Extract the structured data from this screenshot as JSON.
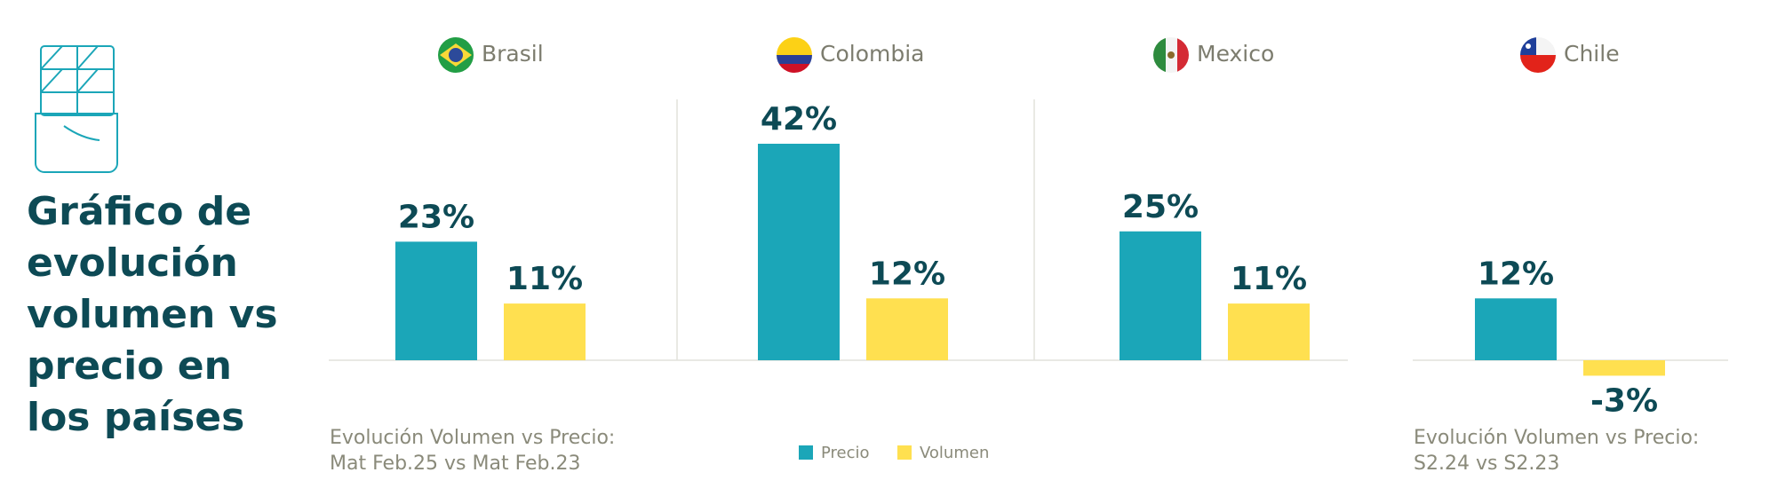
{
  "chart_data": {
    "type": "bar",
    "title": [
      "Gráfico de",
      "evolución",
      "volumen vs",
      "precio en",
      "los países"
    ],
    "categories": [
      "Brasil",
      "Colombia",
      "Mexico",
      "Chile"
    ],
    "series": [
      {
        "name": "Precio",
        "color": "#1ba6b8",
        "values": [
          23,
          42,
          25,
          12
        ],
        "value_labels": [
          "23%",
          "42%",
          "25%",
          "12%"
        ]
      },
      {
        "name": "Volumen",
        "color": "#ffe050",
        "values": [
          11,
          12,
          11,
          -3
        ],
        "value_labels": [
          "11%",
          "12%",
          "11%",
          "-3%"
        ]
      }
    ],
    "notes": [
      [
        "Evolución Volumen vs Precio:",
        "Mat Feb.25 vs Mat Feb.23"
      ],
      [
        "Evolución Volumen vs Precio:",
        "S2.24 vs S2.23"
      ]
    ]
  }
}
